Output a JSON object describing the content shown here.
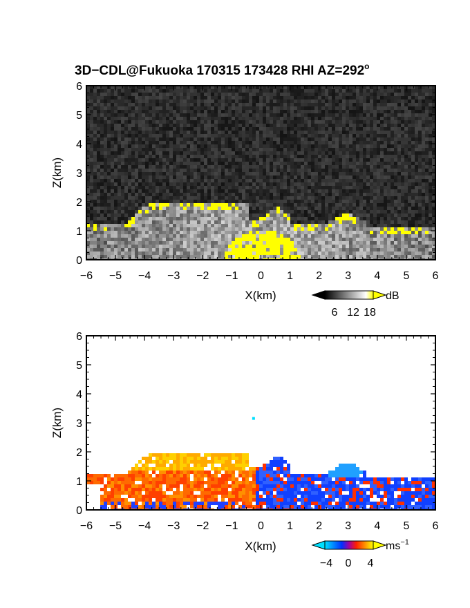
{
  "chart_data": [
    {
      "type": "heatmap",
      "title": "3D−CDL@Fukuoka 170315 173428 RHI AZ=292",
      "title_superscript": "o",
      "xlabel": "X(km)",
      "ylabel": "Z(km)",
      "xlim": [
        -6,
        6
      ],
      "ylim": [
        0,
        6
      ],
      "xticks": [
        "−6",
        "−5",
        "−4",
        "−3",
        "−2",
        "−1",
        "0",
        "1",
        "2",
        "3",
        "4",
        "5",
        "6"
      ],
      "yticks": [
        "0",
        "1",
        "2",
        "3",
        "4",
        "5",
        "6"
      ],
      "colorbar": {
        "label": "dB",
        "ticks": [
          "6",
          "12",
          "18"
        ],
        "colors": [
          "#000000",
          "#ffffff",
          "#ffff00"
        ]
      },
      "data_description_values": {
        "aerosol_layer_top_km_left": 1.35,
        "bright_layer_top_km": 2.0,
        "saturated_above_18dB_color": "#ffff00"
      }
    },
    {
      "type": "heatmap",
      "xlabel": "X(km)",
      "ylabel": "Z(km)",
      "xlim": [
        -6,
        6
      ],
      "ylim": [
        0,
        6
      ],
      "xticks": [
        "−6",
        "−5",
        "−4",
        "−3",
        "−2",
        "−1",
        "0",
        "1",
        "2",
        "3",
        "4",
        "5",
        "6"
      ],
      "yticks": [
        "0",
        "1",
        "2",
        "3",
        "4",
        "5",
        "6"
      ],
      "colorbar": {
        "label": "ms",
        "label_superscript": "−1",
        "ticks": [
          "−4",
          "0",
          "4"
        ],
        "colors": [
          "#00ffff",
          "#0000ff",
          "#ff0000",
          "#ffff00"
        ]
      },
      "data_description_values": {
        "positive_velocity_region_x_km": [
          -6,
          -0.2
        ],
        "negative_velocity_region_x_km": [
          -0.2,
          6
        ],
        "echo_top_km": 2.0,
        "isolated_echo": {
          "x": -0.3,
          "z": 3.2
        }
      }
    }
  ]
}
